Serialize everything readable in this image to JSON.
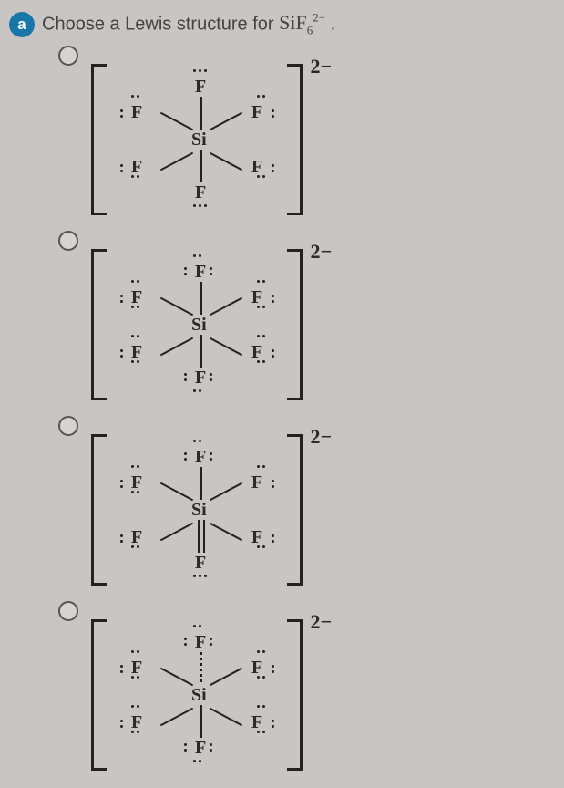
{
  "header": {
    "badge_letter": "a",
    "prompt_pre": "Choose a Lewis structure for ",
    "formula_base": "SiF",
    "formula_sub": "6",
    "formula_sup": "2−",
    "prompt_post": "."
  },
  "atoms": {
    "center": "Si",
    "ligand": "F"
  },
  "charge_label": "2−",
  "colors": {
    "background": "#c8c5c2",
    "text": "#2a2a2a",
    "accent": "#1976a8",
    "line": "#222222"
  },
  "options": [
    {
      "bonds": "single_all",
      "lone_pairs_per_F": 2,
      "top_bottom_lone_pairs_style": "three_dots_arc",
      "description": "Each equatorial F two lone pairs, axial F three-dot cap"
    },
    {
      "bonds": "single_all",
      "lone_pairs_per_F": 3,
      "description": "Each F has three lone pairs (correct structure)"
    },
    {
      "bonds": "one_double_bottom",
      "lone_pairs_per_F": "mixed",
      "description": "Double bond Si=F to bottom F, mixed lone pairs"
    },
    {
      "bonds": "single_all_dotted_top",
      "lone_pairs_per_F": 3,
      "description": "Dotted bond to top F, three lone pairs each"
    }
  ],
  "typography": {
    "question_fontsize": 20,
    "formula_fontsize": 22,
    "atom_fontsize": 20,
    "charge_fontsize": 22
  }
}
